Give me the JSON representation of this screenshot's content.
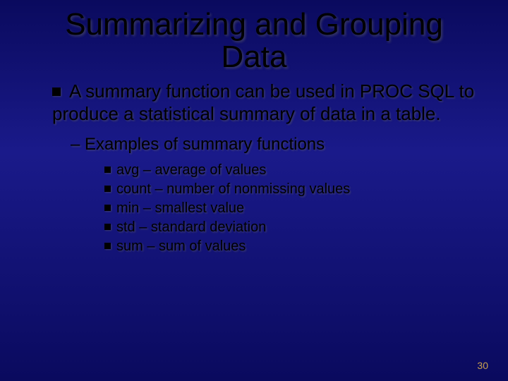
{
  "title_line1": "Summarizing and Grouping",
  "title_line2": "Data",
  "main_text": "A summary function can be used in PROC SQL to produce a statistical summary of data in a table.",
  "sub_heading": "– Examples of summary functions",
  "examples": [
    "avg – average of values",
    "count – number of nonmissing values",
    "min – smallest value",
    "std – standard deviation",
    "sum – sum of values"
  ],
  "page_number": "30",
  "colors": {
    "bg_top": "#0a0a5e",
    "bg_mid": "#1a1a8a",
    "text": "#000000",
    "pagenum": "#c8a050"
  },
  "fonts": {
    "title_size": 44,
    "body_size": 26,
    "sub1_size": 24,
    "sub2_size": 20,
    "family": "Verdana"
  }
}
